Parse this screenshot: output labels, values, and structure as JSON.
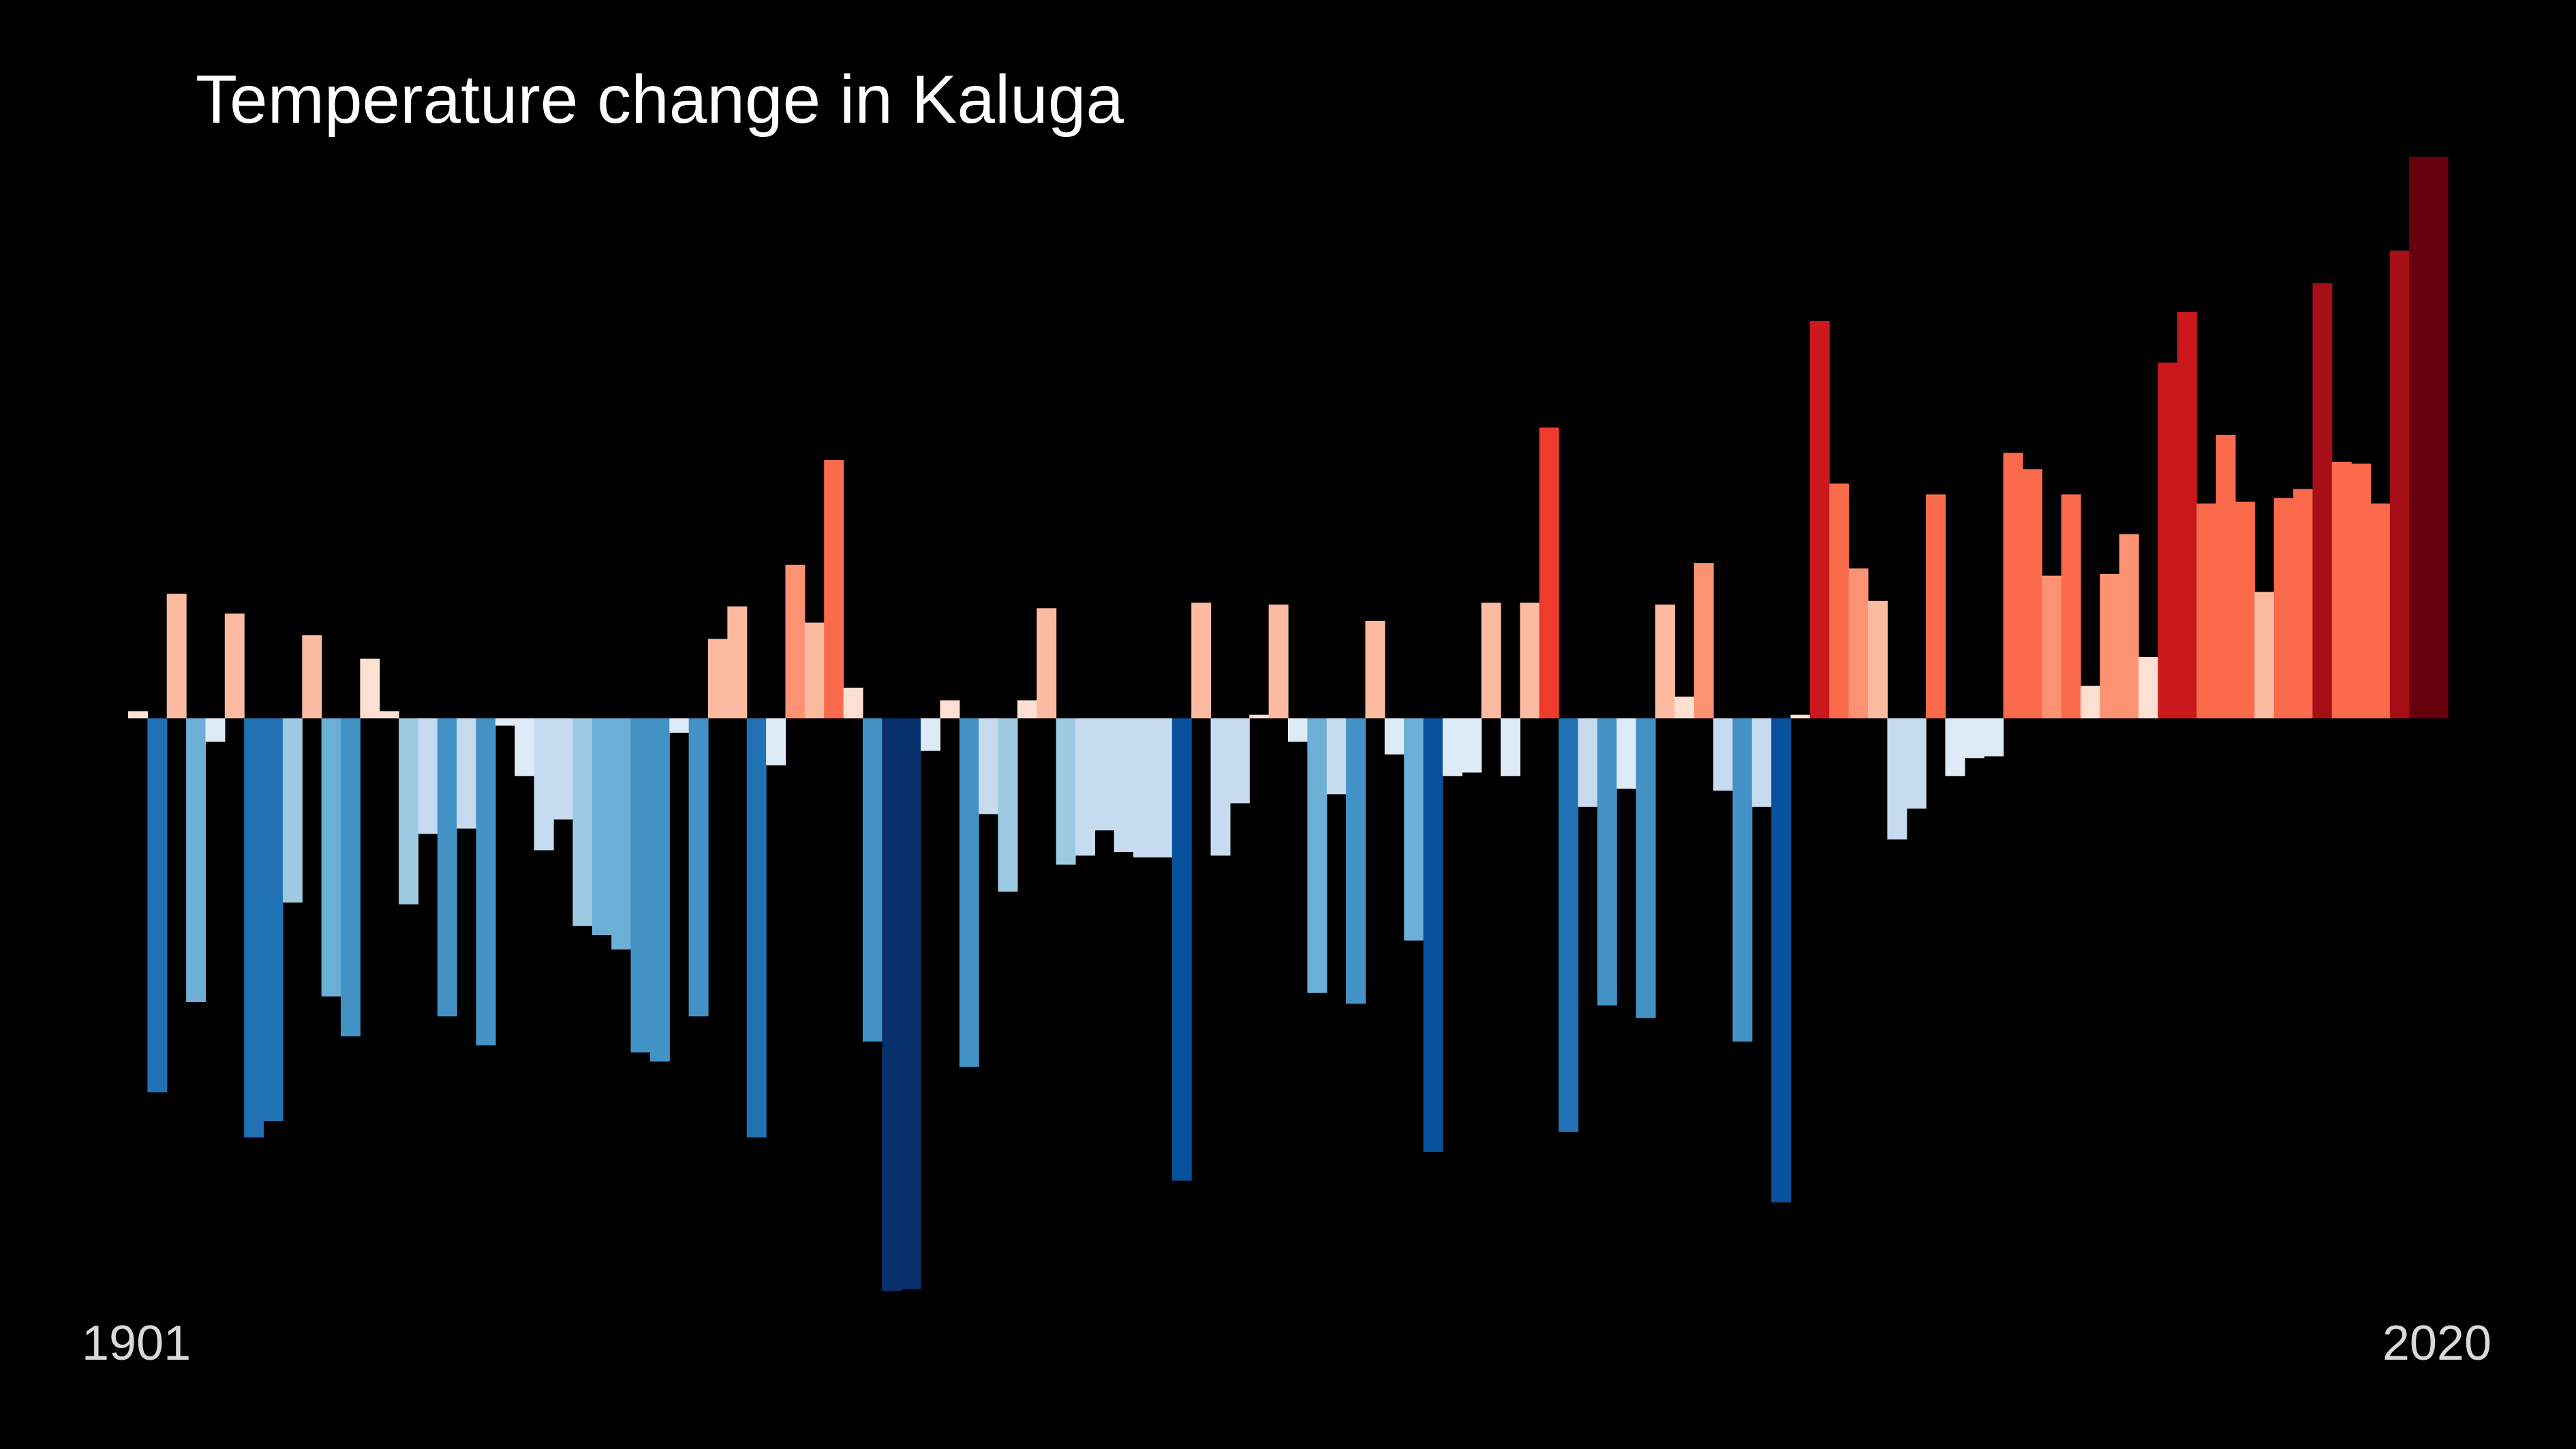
{
  "title": "Temperature change in Kaluga",
  "axis": {
    "start_label": "1901",
    "end_label": "2020"
  },
  "colors": {
    "background": "#000000",
    "title_text": "#ffffff",
    "axis_text": "#d9d9d9"
  },
  "chart_data": {
    "type": "bar",
    "title": "Temperature change in Kaluga",
    "xlabel": "",
    "ylabel": "",
    "x_range": [
      1901,
      2020
    ],
    "ylim": [
      -3.15,
      3.15
    ],
    "grid": false,
    "legend": "none",
    "palette": [
      "#08306b",
      "#08519c",
      "#2171b5",
      "#4292c6",
      "#6baed6",
      "#9ecae1",
      "#c6dbef",
      "#deebf7",
      "#fee0d2",
      "#fcbba1",
      "#fc9272",
      "#fb6a4a",
      "#ef3b2c",
      "#cb181d",
      "#a50f15",
      "#67000d"
    ],
    "x": [
      1901,
      1902,
      1903,
      1904,
      1905,
      1906,
      1907,
      1908,
      1909,
      1910,
      1911,
      1912,
      1913,
      1914,
      1915,
      1916,
      1917,
      1918,
      1919,
      1920,
      1921,
      1922,
      1923,
      1924,
      1925,
      1926,
      1927,
      1928,
      1929,
      1930,
      1931,
      1932,
      1933,
      1934,
      1935,
      1936,
      1937,
      1938,
      1939,
      1940,
      1941,
      1942,
      1943,
      1944,
      1945,
      1946,
      1947,
      1948,
      1949,
      1950,
      1951,
      1952,
      1953,
      1954,
      1955,
      1956,
      1957,
      1958,
      1959,
      1960,
      1961,
      1962,
      1963,
      1964,
      1965,
      1966,
      1967,
      1968,
      1969,
      1970,
      1971,
      1972,
      1973,
      1974,
      1975,
      1976,
      1977,
      1978,
      1979,
      1980,
      1981,
      1982,
      1983,
      1984,
      1985,
      1986,
      1987,
      1988,
      1989,
      1990,
      1991,
      1992,
      1993,
      1994,
      1995,
      1996,
      1997,
      1998,
      1999,
      2000,
      2001,
      2002,
      2003,
      2004,
      2005,
      2006,
      2007,
      2008,
      2009,
      2010,
      2011,
      2012,
      2013,
      2014,
      2015,
      2016,
      2017,
      2018,
      2019,
      2020
    ],
    "values": [
      0.04,
      -2.07,
      0.69,
      -1.57,
      -0.13,
      0.58,
      -2.32,
      -2.23,
      -1.02,
      0.46,
      -1.54,
      -1.76,
      0.33,
      0.04,
      -1.03,
      -0.64,
      -1.65,
      -0.61,
      -1.81,
      -0.04,
      -0.32,
      -0.73,
      -0.56,
      -1.15,
      -1.2,
      -1.28,
      -1.85,
      -1.9,
      -0.08,
      -1.65,
      0.44,
      0.62,
      -2.32,
      -0.26,
      0.85,
      0.53,
      1.43,
      0.17,
      -1.79,
      -3.17,
      -3.16,
      -0.18,
      0.1,
      -1.93,
      -0.53,
      -0.96,
      0.1,
      0.61,
      -0.81,
      -0.76,
      -0.62,
      -0.74,
      -0.77,
      -0.77,
      -2.56,
      0.64,
      -0.76,
      -0.47,
      0.02,
      0.63,
      -0.13,
      -1.52,
      -0.42,
      -1.58,
      0.54,
      -0.2,
      -1.23,
      -2.4,
      -0.32,
      -0.3,
      0.64,
      -0.32,
      0.64,
      1.61,
      -2.29,
      -0.49,
      -1.59,
      -0.39,
      -1.66,
      0.63,
      0.12,
      0.86,
      -0.4,
      -1.79,
      -0.49,
      -2.68,
      0.02,
      2.2,
      1.3,
      0.83,
      0.65,
      -0.67,
      -0.5,
      1.24,
      -0.32,
      -0.22,
      -0.21,
      1.47,
      1.38,
      0.79,
      1.24,
      0.18,
      0.8,
      1.02,
      0.34,
      1.97,
      2.25,
      1.19,
      1.57,
      1.2,
      0.7,
      1.22,
      1.27,
      2.41,
      1.42,
      1.41,
      1.19,
      2.59,
      3.11,
      3.11
    ]
  }
}
